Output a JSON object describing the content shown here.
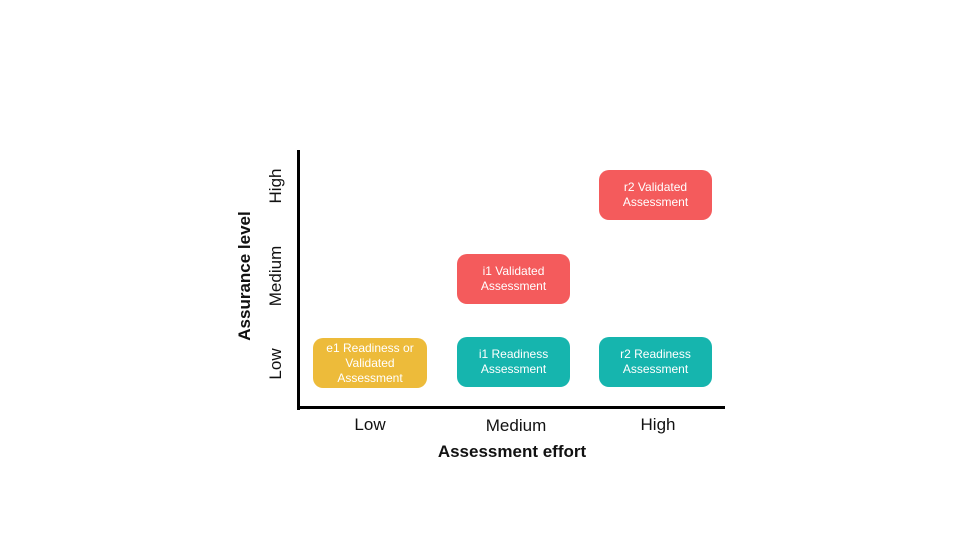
{
  "axes": {
    "x_title": "Assessment effort",
    "y_title": "Assurance level",
    "x_ticks": [
      "Low",
      "Medium",
      "High"
    ],
    "y_ticks": [
      "Low",
      "Medium",
      "High"
    ]
  },
  "boxes": [
    {
      "id": "e1",
      "label": "e1 Readiness or\nValidated\nAssessment",
      "effort": "Low",
      "assurance": "Low",
      "color": "#EDBB3A"
    },
    {
      "id": "i1-readiness",
      "label": "i1 Readiness\nAssessment",
      "effort": "Medium",
      "assurance": "Low",
      "color": "#16B5AE"
    },
    {
      "id": "r2-readiness",
      "label": "r2 Readiness\nAssessment",
      "effort": "High",
      "assurance": "Low",
      "color": "#16B5AE"
    },
    {
      "id": "i1-validated",
      "label": "i1 Validated\nAssessment",
      "effort": "Medium",
      "assurance": "Medium",
      "color": "#F45B5C"
    },
    {
      "id": "r2-validated",
      "label": "r2 Validated\nAssessment",
      "effort": "High",
      "assurance": "High",
      "color": "#F45B5C"
    }
  ]
}
